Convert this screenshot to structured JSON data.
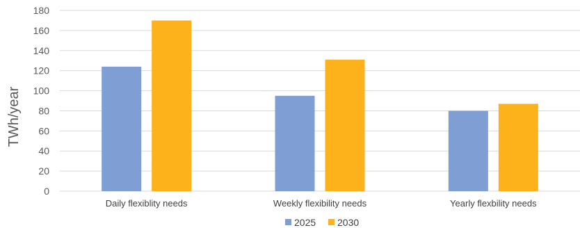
{
  "chart_data": {
    "type": "bar",
    "title": "",
    "xlabel": "",
    "ylabel": "TWh/year",
    "ylim": [
      0,
      180
    ],
    "yticks": [
      0,
      20,
      40,
      60,
      80,
      100,
      120,
      140,
      160,
      180
    ],
    "grid": true,
    "legend_position": "bottom",
    "categories": [
      "Daily flexiblity needs",
      "Weekly flexibility needs",
      "Yearly flexbility needs"
    ],
    "series": [
      {
        "name": "2025",
        "color": "#7f9fd4",
        "values": [
          124,
          95,
          80
        ]
      },
      {
        "name": "2030",
        "color": "#fdb21c",
        "values": [
          170,
          131,
          87
        ]
      }
    ]
  }
}
